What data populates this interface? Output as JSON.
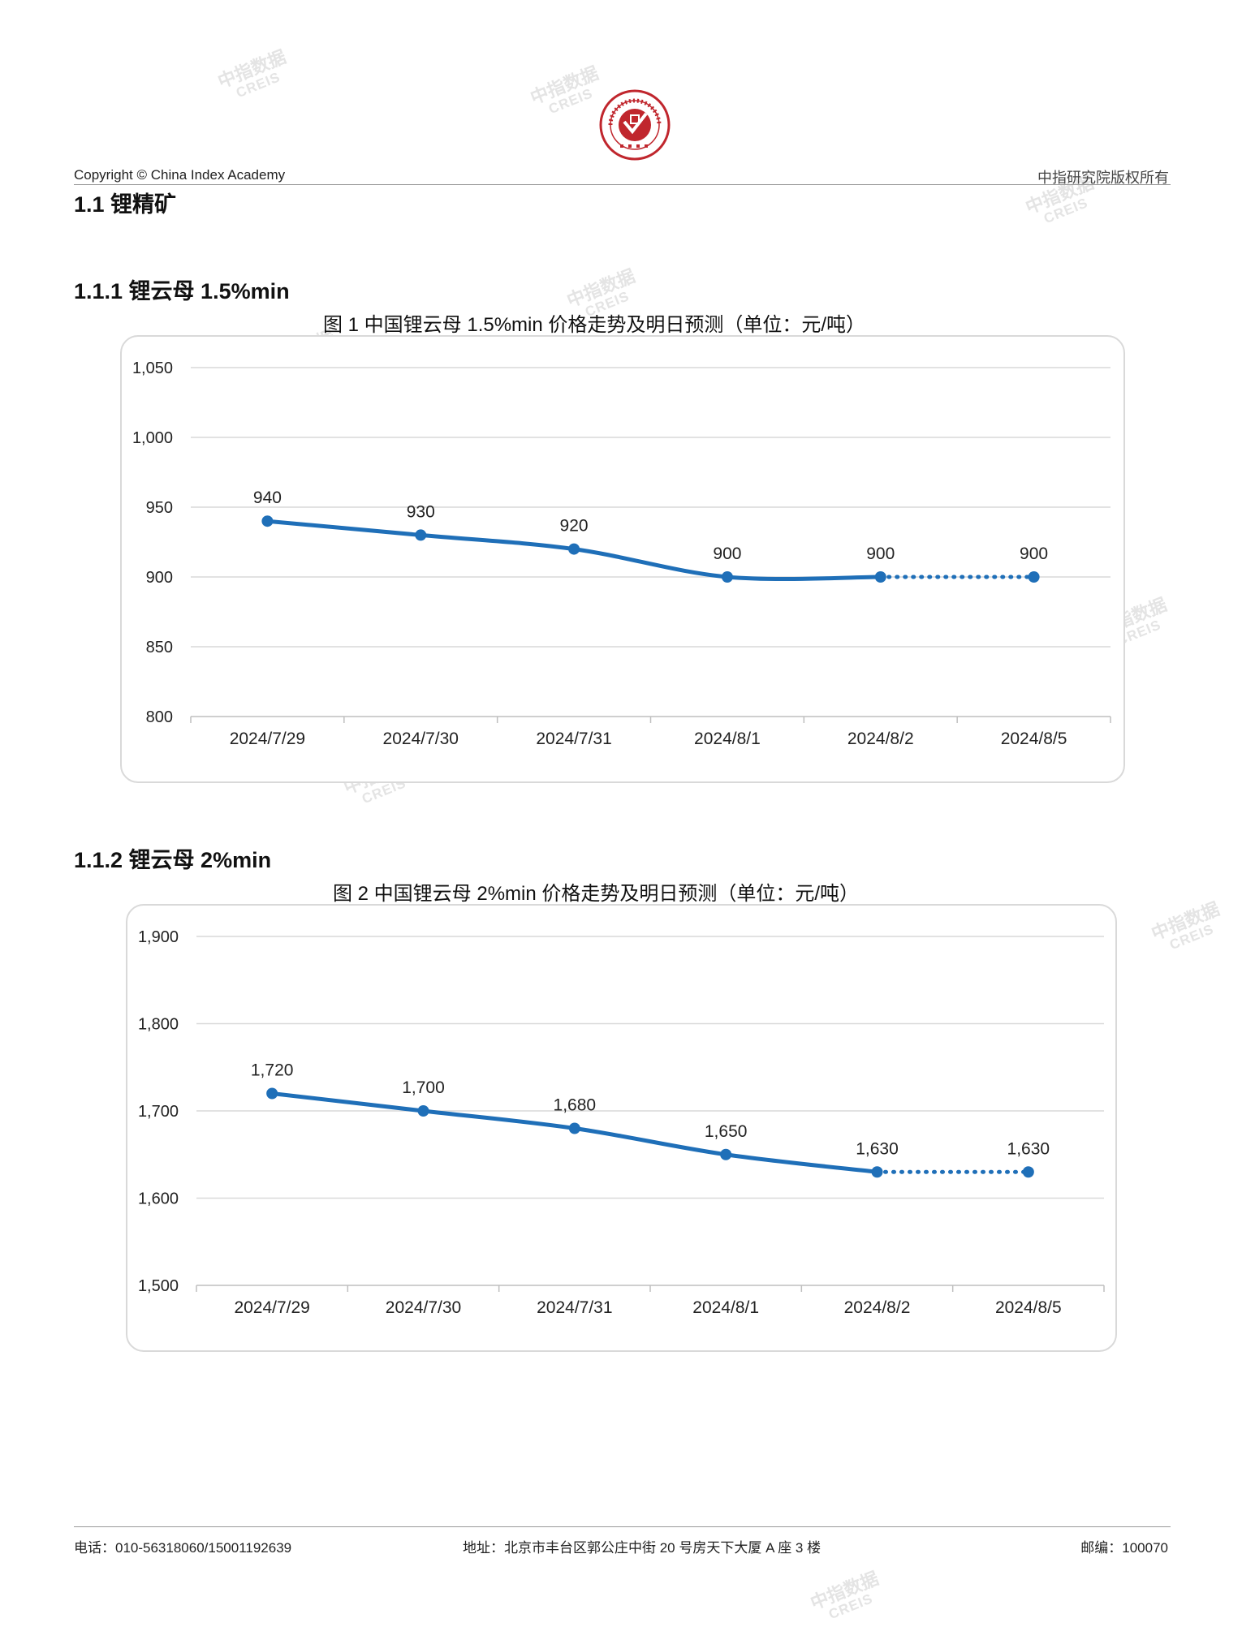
{
  "header": {
    "copyright": "Copyright © China Index Academy",
    "rights": "中指研究院版权所有",
    "logo_text": "CHINA INDEX ACADEMY 中指 研究院"
  },
  "section": {
    "h1": "1.1 锂精矿",
    "sub1": "1.1.1 锂云母 1.5%min",
    "sub2": "1.1.2 锂云母 2%min"
  },
  "watermark": {
    "zh": "中指数据",
    "en": "CREIS"
  },
  "footer": {
    "phone": "电话：010-56318060/15001192639",
    "address": "地址：北京市丰台区郭公庄中街 20 号房天下大厦 A 座 3 楼",
    "postcode": "邮编：100070"
  },
  "colors": {
    "line": "#1f6fb8",
    "grid": "#d9d9d9"
  },
  "chart_data": [
    {
      "type": "line",
      "title": "图 1 中国锂云母 1.5%min 价格走势及明日预测（单位：元/吨）",
      "categories": [
        "2024/7/29",
        "2024/7/30",
        "2024/7/31",
        "2024/8/1",
        "2024/8/2",
        "2024/8/5"
      ],
      "values": [
        940,
        930,
        920,
        900,
        900,
        900
      ],
      "value_labels": [
        "940",
        "930",
        "920",
        "900",
        "900",
        "900"
      ],
      "forecast_from_index": 4,
      "ylim": [
        800,
        1050
      ],
      "yticks": [
        800,
        850,
        900,
        950,
        1000,
        1050
      ],
      "ytick_labels": [
        "800",
        "850",
        "900",
        "950",
        "1,000",
        "1,050"
      ],
      "grid": true,
      "legend": "none"
    },
    {
      "type": "line",
      "title": "图 2 中国锂云母 2%min 价格走势及明日预测（单位：元/吨）",
      "categories": [
        "2024/7/29",
        "2024/7/30",
        "2024/7/31",
        "2024/8/1",
        "2024/8/2",
        "2024/8/5"
      ],
      "values": [
        1720,
        1700,
        1680,
        1650,
        1630,
        1630
      ],
      "value_labels": [
        "1,720",
        "1,700",
        "1,680",
        "1,650",
        "1,630",
        "1,630"
      ],
      "forecast_from_index": 4,
      "ylim": [
        1500,
        1900
      ],
      "yticks": [
        1500,
        1600,
        1700,
        1800,
        1900
      ],
      "ytick_labels": [
        "1,500",
        "1,600",
        "1,700",
        "1,800",
        "1,900"
      ],
      "grid": true,
      "legend": "none"
    }
  ]
}
